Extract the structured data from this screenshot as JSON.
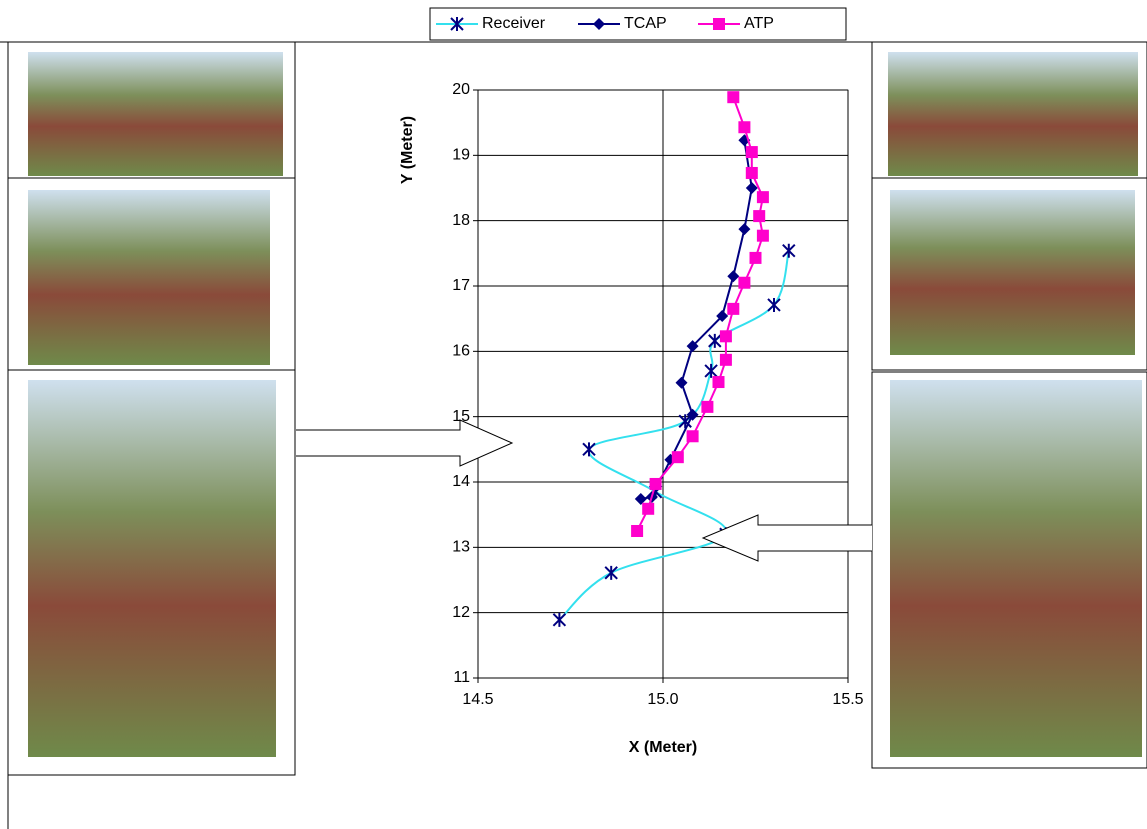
{
  "chart_data": {
    "type": "line",
    "xlabel": "X (Meter)",
    "ylabel": "Y (Meter)",
    "xlim": [
      14.5,
      15.5
    ],
    "xticks": [
      14.5,
      {
        "value": 15,
        "label": "15.0"
      },
      15.5
    ],
    "ylim": [
      11,
      20
    ],
    "yticks": [
      11,
      12,
      13,
      14,
      15,
      16,
      17,
      18,
      19,
      20
    ],
    "grid": true,
    "legend": "top",
    "series": [
      {
        "name": "Receiver",
        "color": "#33e0ee",
        "marker": "star",
        "smooth": true,
        "x": [
          14.72,
          14.86,
          15.17,
          14.98,
          14.8,
          15.06,
          15.13,
          15.14,
          15.3,
          15.34
        ],
        "values": [
          11.89,
          12.61,
          13.2,
          13.85,
          14.5,
          14.93,
          15.7,
          16.16,
          16.71,
          17.54
        ]
      },
      {
        "name": "TCAP",
        "color": "#000080",
        "marker": "diamond",
        "smooth": false,
        "x": [
          14.94,
          14.97,
          15.02,
          15.08,
          15.05,
          15.08,
          15.16,
          15.19,
          15.22,
          15.24,
          15.22
        ],
        "values": [
          13.74,
          13.77,
          14.34,
          15.03,
          15.52,
          16.08,
          16.54,
          17.15,
          17.87,
          18.5,
          19.23
        ]
      },
      {
        "name": "ATP",
        "color": "#ff00cc",
        "marker": "square",
        "smooth": false,
        "x": [
          14.93,
          14.96,
          14.98,
          15.04,
          15.08,
          15.12,
          15.15,
          15.17,
          15.17,
          15.19,
          15.22,
          15.25,
          15.27,
          15.26,
          15.27,
          15.24,
          15.24,
          15.22,
          15.19
        ],
        "values": [
          13.25,
          13.59,
          13.97,
          14.38,
          14.7,
          15.15,
          15.53,
          15.87,
          16.23,
          16.65,
          17.05,
          17.43,
          17.77,
          18.07,
          18.36,
          18.73,
          19.05,
          19.43,
          19.89
        ]
      }
    ]
  }
}
